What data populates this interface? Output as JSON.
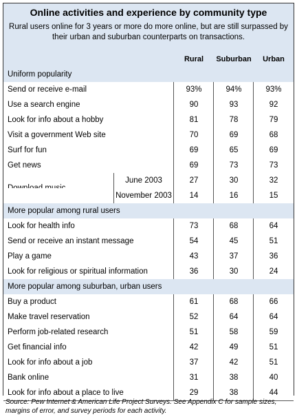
{
  "title": "Online activities and experience by community type",
  "subtitle": "Rural users online for 3 years or more do more online, but are still surpassed by their urban and suburban counterparts on transactions.",
  "chart_data": {
    "type": "table",
    "columns": [
      "Rural",
      "Suburban",
      "Urban"
    ],
    "sections": [
      {
        "name": "Uniform popularity",
        "rows": [
          {
            "label": "Send or receive e-mail",
            "values": [
              "93%",
              "94%",
              "93%"
            ]
          },
          {
            "label": "Use a search engine",
            "values": [
              "90",
              "93",
              "92"
            ]
          },
          {
            "label": "Look for info about a hobby",
            "values": [
              "81",
              "78",
              "79"
            ]
          },
          {
            "label": "Visit a government Web site",
            "values": [
              "70",
              "69",
              "68"
            ]
          },
          {
            "label": "Surf for fun",
            "values": [
              "69",
              "65",
              "69"
            ]
          },
          {
            "label": "Get news",
            "values": [
              "69",
              "73",
              "73"
            ]
          },
          {
            "label": "Download music",
            "sub": "June 2003",
            "values": [
              "27",
              "30",
              "32"
            ]
          },
          {
            "label": "",
            "sub": "November 2003",
            "values": [
              "14",
              "16",
              "15"
            ]
          }
        ]
      },
      {
        "name": "More popular among rural users",
        "rows": [
          {
            "label": "Look for health info",
            "values": [
              "73",
              "68",
              "64"
            ]
          },
          {
            "label": "Send or receive an instant message",
            "values": [
              "54",
              "45",
              "51"
            ]
          },
          {
            "label": "Play a game",
            "values": [
              "43",
              "37",
              "36"
            ]
          },
          {
            "label": "Look for religious or spiritual information",
            "values": [
              "36",
              "30",
              "24"
            ]
          }
        ]
      },
      {
        "name": "More popular among suburban, urban users",
        "rows": [
          {
            "label": "Buy a product",
            "values": [
              "61",
              "68",
              "66"
            ]
          },
          {
            "label": "Make travel reservation",
            "values": [
              "52",
              "64",
              "64"
            ]
          },
          {
            "label": "Perform job-related research",
            "values": [
              "51",
              "58",
              "59"
            ]
          },
          {
            "label": "Get financial info",
            "values": [
              "42",
              "49",
              "51"
            ]
          },
          {
            "label": "Look for info about a job",
            "values": [
              "37",
              "42",
              "51"
            ]
          },
          {
            "label": "Bank online",
            "values": [
              "31",
              "38",
              "40"
            ]
          },
          {
            "label": "Look for info about a place to live",
            "values": [
              "29",
              "38",
              "44"
            ]
          }
        ]
      }
    ]
  },
  "source": "Source: Pew Internet & American Life Project Surveys. See Appendix C for sample sizes, margins of error, and survey periods for each activity."
}
